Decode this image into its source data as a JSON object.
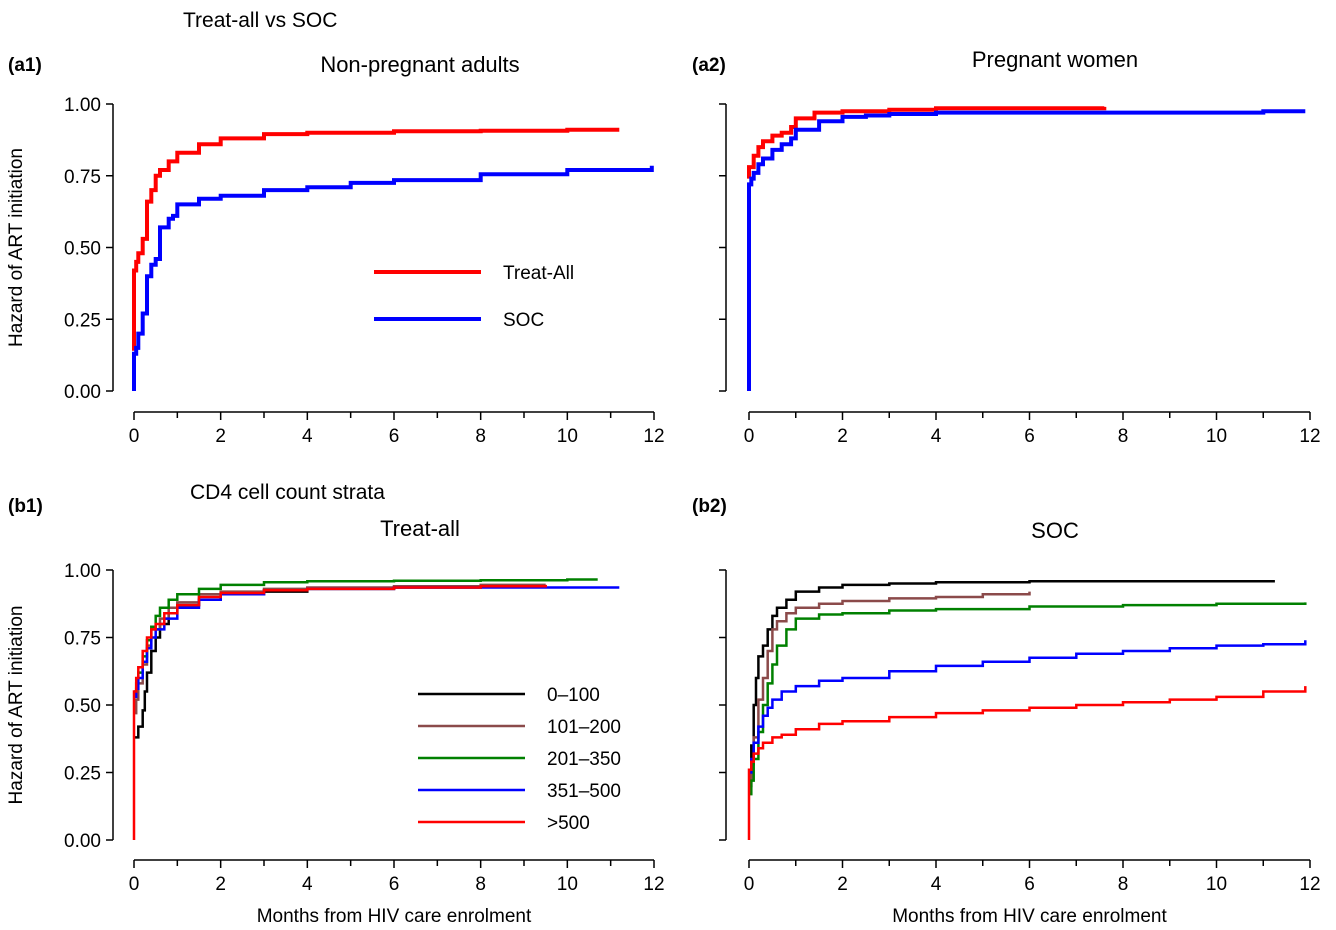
{
  "figure": {
    "section_a_title": "Treat-all vs SOC",
    "section_b_title": "CD4 cell count strata"
  },
  "chart_data": [
    {
      "panel_id": "a1",
      "type": "line",
      "subtype": "step",
      "label": "(a1)",
      "title": "Non-pregnant adults",
      "xlabel": "",
      "ylabel": "Hazard of ART initiation",
      "xlim": [
        0,
        12
      ],
      "ylim": [
        0,
        1
      ],
      "xticks": [
        0,
        2,
        4,
        6,
        8,
        10,
        12
      ],
      "yticks": [
        0.0,
        0.25,
        0.5,
        0.75,
        1.0
      ],
      "ytick_labels": [
        "0.00",
        "0.25",
        "0.50",
        "0.75",
        "1.00"
      ],
      "show_ytick_labels": true,
      "grid": false,
      "legend": {
        "position": "center-right"
      },
      "series": [
        {
          "name": "Treat-All",
          "color": "#ff0000",
          "width": 4,
          "x": [
            0,
            0,
            0.05,
            0.1,
            0.2,
            0.3,
            0.4,
            0.5,
            0.6,
            0.8,
            1.0,
            1.5,
            2,
            3,
            4,
            6,
            8,
            10,
            11.2
          ],
          "y": [
            0.14,
            0.42,
            0.45,
            0.48,
            0.53,
            0.66,
            0.7,
            0.75,
            0.77,
            0.8,
            0.83,
            0.86,
            0.88,
            0.895,
            0.9,
            0.905,
            0.907,
            0.91,
            0.91
          ]
        },
        {
          "name": "SOC",
          "color": "#0000ff",
          "width": 4,
          "x": [
            0,
            0,
            0.05,
            0.1,
            0.2,
            0.3,
            0.4,
            0.5,
            0.6,
            0.8,
            0.9,
            1.0,
            1.5,
            2,
            3,
            4,
            5,
            6,
            8,
            10,
            11.95
          ],
          "y": [
            0,
            0.13,
            0.15,
            0.2,
            0.27,
            0.4,
            0.44,
            0.46,
            0.57,
            0.6,
            0.61,
            0.65,
            0.67,
            0.68,
            0.7,
            0.71,
            0.725,
            0.735,
            0.755,
            0.77,
            0.785
          ]
        }
      ]
    },
    {
      "panel_id": "a2",
      "type": "line",
      "subtype": "step",
      "label": "(a2)",
      "title": "Pregnant women",
      "xlabel": "",
      "ylabel": "",
      "xlim": [
        0,
        12
      ],
      "ylim": [
        0,
        1
      ],
      "xticks": [
        0,
        2,
        4,
        6,
        8,
        10,
        12
      ],
      "yticks": [
        0.0,
        0.25,
        0.5,
        0.75,
        1.0
      ],
      "ytick_labels": [
        "0.00",
        "0.25",
        "0.50",
        "0.75",
        "1.00"
      ],
      "show_ytick_labels": false,
      "grid": false,
      "series": [
        {
          "color": "#ff0000",
          "width": 4,
          "x": [
            0,
            0,
            0.1,
            0.2,
            0.3,
            0.5,
            0.7,
            0.9,
            1.0,
            1.4,
            2,
            3,
            4,
            6,
            7.6
          ],
          "y": [
            0.74,
            0.78,
            0.82,
            0.85,
            0.87,
            0.89,
            0.9,
            0.92,
            0.95,
            0.97,
            0.975,
            0.98,
            0.985,
            0.985,
            0.99
          ]
        },
        {
          "color": "#0000ff",
          "width": 4,
          "x": [
            0,
            0,
            0.05,
            0.1,
            0.2,
            0.3,
            0.5,
            0.7,
            0.9,
            1.0,
            1.5,
            2,
            2.5,
            3,
            4,
            6,
            8,
            10,
            11,
            11.9
          ],
          "y": [
            0,
            0.72,
            0.74,
            0.76,
            0.79,
            0.81,
            0.84,
            0.86,
            0.88,
            0.91,
            0.94,
            0.955,
            0.96,
            0.965,
            0.97,
            0.97,
            0.97,
            0.97,
            0.975,
            0.975
          ]
        }
      ]
    },
    {
      "panel_id": "b1",
      "type": "line",
      "subtype": "step",
      "label": "(b1)",
      "title": "Treat-all",
      "xlabel": "Months from HIV care enrolment",
      "ylabel": "Hazard of ART initiation",
      "xlim": [
        0,
        12
      ],
      "ylim": [
        0,
        1
      ],
      "xticks": [
        0,
        2,
        4,
        6,
        8,
        10,
        12
      ],
      "yticks": [
        0.0,
        0.25,
        0.5,
        0.75,
        1.0
      ],
      "ytick_labels": [
        "0.00",
        "0.25",
        "0.50",
        "0.75",
        "1.00"
      ],
      "show_ytick_labels": true,
      "grid": false,
      "legend": {
        "position": "center-right"
      },
      "series": [
        {
          "name": "0–100",
          "color": "#000000",
          "width": 2.5,
          "x": [
            0,
            0.1,
            0.2,
            0.25,
            0.3,
            0.4,
            0.5,
            0.6,
            0.8,
            1.0,
            1.5,
            2,
            3,
            4,
            6,
            8,
            9.5
          ],
          "y": [
            0.38,
            0.42,
            0.48,
            0.55,
            0.62,
            0.7,
            0.75,
            0.8,
            0.84,
            0.87,
            0.89,
            0.91,
            0.92,
            0.93,
            0.935,
            0.94,
            0.94
          ]
        },
        {
          "name": "101–200",
          "color": "#8b4a4a",
          "width": 2.5,
          "x": [
            0,
            0.05,
            0.1,
            0.2,
            0.3,
            0.4,
            0.6,
            0.8,
            1.0,
            1.5,
            2,
            3,
            4,
            6,
            8,
            9.5
          ],
          "y": [
            0.47,
            0.52,
            0.58,
            0.65,
            0.72,
            0.78,
            0.82,
            0.86,
            0.88,
            0.91,
            0.92,
            0.93,
            0.935,
            0.94,
            0.945,
            0.945
          ]
        },
        {
          "name": "201–350",
          "color": "#008000",
          "width": 2.5,
          "x": [
            0,
            0.05,
            0.1,
            0.2,
            0.3,
            0.4,
            0.5,
            0.6,
            0.8,
            1.0,
            1.5,
            2,
            3,
            4,
            6,
            8,
            10,
            10.7
          ],
          "y": [
            0.55,
            0.58,
            0.62,
            0.68,
            0.74,
            0.79,
            0.83,
            0.86,
            0.89,
            0.91,
            0.93,
            0.945,
            0.955,
            0.958,
            0.96,
            0.962,
            0.965,
            0.965
          ]
        },
        {
          "name": "351–500",
          "color": "#0000ff",
          "width": 2.5,
          "x": [
            0,
            0.05,
            0.1,
            0.2,
            0.3,
            0.4,
            0.5,
            0.7,
            1.0,
            1.5,
            2,
            3,
            4,
            6,
            8,
            10,
            11.2
          ],
          "y": [
            0.53,
            0.56,
            0.6,
            0.66,
            0.71,
            0.75,
            0.78,
            0.82,
            0.86,
            0.89,
            0.91,
            0.925,
            0.93,
            0.935,
            0.935,
            0.935,
            0.935
          ]
        },
        {
          "name": ">500",
          "color": "#ff0000",
          "width": 2.5,
          "x": [
            0,
            0,
            0.05,
            0.1,
            0.2,
            0.3,
            0.4,
            0.5,
            0.7,
            1.0,
            1.5,
            2,
            3,
            4,
            6,
            8,
            9.5
          ],
          "y": [
            0,
            0.55,
            0.6,
            0.64,
            0.7,
            0.75,
            0.78,
            0.8,
            0.84,
            0.87,
            0.9,
            0.915,
            0.925,
            0.93,
            0.935,
            0.94,
            0.945
          ]
        }
      ]
    },
    {
      "panel_id": "b2",
      "type": "line",
      "subtype": "step",
      "label": "(b2)",
      "title": "SOC",
      "xlabel": "Months from HIV care enrolment",
      "ylabel": "",
      "xlim": [
        0,
        12
      ],
      "ylim": [
        0,
        1
      ],
      "xticks": [
        0,
        2,
        4,
        6,
        8,
        10,
        12
      ],
      "yticks": [
        0.0,
        0.25,
        0.5,
        0.75,
        1.0
      ],
      "ytick_labels": [
        "0.00",
        "0.25",
        "0.50",
        "0.75",
        "1.00"
      ],
      "show_ytick_labels": false,
      "grid": false,
      "series": [
        {
          "color": "#000000",
          "width": 2.5,
          "x": [
            0,
            0.05,
            0.1,
            0.15,
            0.2,
            0.3,
            0.4,
            0.5,
            0.6,
            0.8,
            1.0,
            1.5,
            2,
            3,
            4,
            6,
            8,
            10,
            11.25
          ],
          "y": [
            0.2,
            0.35,
            0.5,
            0.6,
            0.68,
            0.72,
            0.78,
            0.83,
            0.86,
            0.89,
            0.92,
            0.935,
            0.945,
            0.95,
            0.955,
            0.958,
            0.958,
            0.958,
            0.958
          ]
        },
        {
          "color": "#8b4a4a",
          "width": 2.5,
          "x": [
            0,
            0.05,
            0.1,
            0.2,
            0.3,
            0.4,
            0.5,
            0.6,
            0.8,
            1.0,
            1.5,
            2,
            3,
            4,
            5,
            6
          ],
          "y": [
            0.2,
            0.28,
            0.38,
            0.52,
            0.6,
            0.7,
            0.78,
            0.81,
            0.84,
            0.86,
            0.875,
            0.885,
            0.895,
            0.9,
            0.91,
            0.92
          ]
        },
        {
          "color": "#008000",
          "width": 2.5,
          "x": [
            0,
            0.05,
            0.1,
            0.2,
            0.3,
            0.4,
            0.5,
            0.6,
            0.8,
            1.0,
            1.5,
            2,
            3,
            4,
            6,
            8,
            10,
            11.9
          ],
          "y": [
            0.17,
            0.22,
            0.3,
            0.4,
            0.5,
            0.58,
            0.65,
            0.72,
            0.78,
            0.82,
            0.835,
            0.84,
            0.85,
            0.855,
            0.865,
            0.87,
            0.875,
            0.88
          ]
        },
        {
          "color": "#0000ff",
          "width": 2.5,
          "x": [
            0,
            0.05,
            0.1,
            0.2,
            0.3,
            0.4,
            0.5,
            0.7,
            1.0,
            1.5,
            2,
            3,
            4,
            5,
            6,
            7,
            8,
            9,
            10,
            11,
            11.9
          ],
          "y": [
            0.25,
            0.3,
            0.36,
            0.42,
            0.46,
            0.49,
            0.52,
            0.55,
            0.57,
            0.59,
            0.6,
            0.625,
            0.645,
            0.66,
            0.675,
            0.69,
            0.7,
            0.71,
            0.72,
            0.725,
            0.74
          ]
        },
        {
          "color": "#ff0000",
          "width": 2.5,
          "x": [
            0,
            0,
            0.05,
            0.1,
            0.2,
            0.3,
            0.5,
            0.7,
            1.0,
            1.5,
            2,
            3,
            4,
            5,
            6,
            7,
            8,
            9,
            10,
            11,
            11.9
          ],
          "y": [
            0,
            0.26,
            0.29,
            0.32,
            0.34,
            0.36,
            0.38,
            0.39,
            0.41,
            0.43,
            0.44,
            0.455,
            0.47,
            0.48,
            0.49,
            0.5,
            0.51,
            0.52,
            0.53,
            0.55,
            0.57
          ]
        }
      ]
    }
  ]
}
